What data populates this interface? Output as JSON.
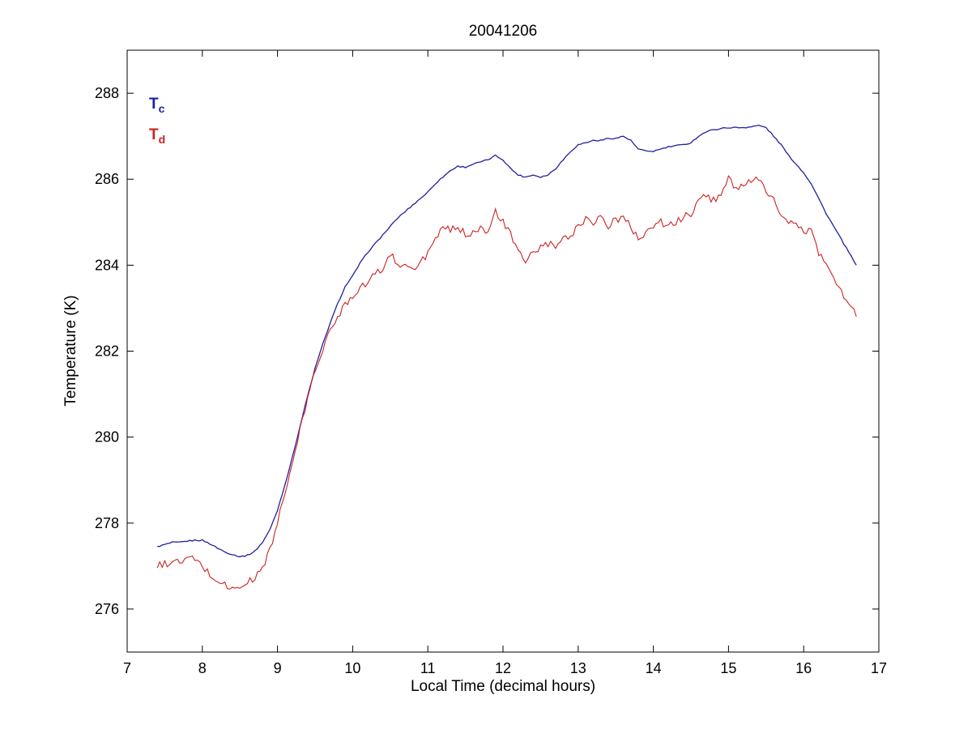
{
  "figure": {
    "background": "#ffffff",
    "axes_color": "#000000"
  },
  "chart_data": {
    "type": "line",
    "title": "20041206",
    "xlabel": "Local Time (decimal hours)",
    "ylabel": "Temperature (K)",
    "xlim": [
      7,
      17
    ],
    "ylim": [
      275,
      289
    ],
    "xticks": [
      7,
      8,
      9,
      10,
      11,
      12,
      13,
      14,
      15,
      16,
      17
    ],
    "yticks": [
      276,
      278,
      280,
      282,
      284,
      286,
      288
    ],
    "grid": false,
    "legend_position": "top-left-inside",
    "x_start": 7.4,
    "x_step": 0.1,
    "x_end": 16.7,
    "series": [
      {
        "name": "Tc",
        "legend_main": "T",
        "legend_sub": "c",
        "color": "#2020a0",
        "width": 1.3,
        "jitter": 0.015,
        "values": [
          277.45,
          277.5,
          277.55,
          277.55,
          277.58,
          277.6,
          277.6,
          277.52,
          277.42,
          277.33,
          277.27,
          277.22,
          277.25,
          277.35,
          277.55,
          277.85,
          278.3,
          278.9,
          279.55,
          280.25,
          280.95,
          281.6,
          282.15,
          282.65,
          283.1,
          283.5,
          283.75,
          284.05,
          284.3,
          284.5,
          284.7,
          284.9,
          285.1,
          285.25,
          285.4,
          285.55,
          285.7,
          285.9,
          286.05,
          286.2,
          286.3,
          286.28,
          286.35,
          286.4,
          286.45,
          286.55,
          286.45,
          286.25,
          286.1,
          286.05,
          286.1,
          286.05,
          286.1,
          286.25,
          286.45,
          286.65,
          286.8,
          286.85,
          286.9,
          286.9,
          286.95,
          286.95,
          287.0,
          286.9,
          286.7,
          286.65,
          286.65,
          286.7,
          286.75,
          286.78,
          286.8,
          286.85,
          287.0,
          287.1,
          287.15,
          287.18,
          287.2,
          287.2,
          287.2,
          287.22,
          287.25,
          287.2,
          287.0,
          286.8,
          286.55,
          286.35,
          286.15,
          285.9,
          285.55,
          285.2,
          284.9,
          284.6,
          284.3,
          284.0
        ]
      },
      {
        "name": "Td",
        "legend_main": "T",
        "legend_sub": "d",
        "color": "#cc2222",
        "width": 1.1,
        "jitter": 0.09,
        "values": [
          277.0,
          277.05,
          277.1,
          277.08,
          277.18,
          277.15,
          277.0,
          276.8,
          276.65,
          276.58,
          276.45,
          276.5,
          276.62,
          276.72,
          276.95,
          277.4,
          278.0,
          278.7,
          279.4,
          280.15,
          280.9,
          281.55,
          282.05,
          282.45,
          282.8,
          283.1,
          283.3,
          283.5,
          283.6,
          283.8,
          283.9,
          284.3,
          283.95,
          284.1,
          283.85,
          284.05,
          284.3,
          284.55,
          284.9,
          284.8,
          284.9,
          284.7,
          284.8,
          284.9,
          284.7,
          285.25,
          285.0,
          284.7,
          284.3,
          284.1,
          284.3,
          284.4,
          284.5,
          284.4,
          284.6,
          284.7,
          284.9,
          285.1,
          285.0,
          285.15,
          284.9,
          285.05,
          285.1,
          284.9,
          284.6,
          284.8,
          284.9,
          285.0,
          284.9,
          285.0,
          285.1,
          285.2,
          285.5,
          285.6,
          285.5,
          285.7,
          286.0,
          285.8,
          285.9,
          285.9,
          286.0,
          285.7,
          285.5,
          285.2,
          285.0,
          284.9,
          284.8,
          284.8,
          284.3,
          284.0,
          283.7,
          283.4,
          283.1,
          282.8
        ]
      }
    ]
  }
}
